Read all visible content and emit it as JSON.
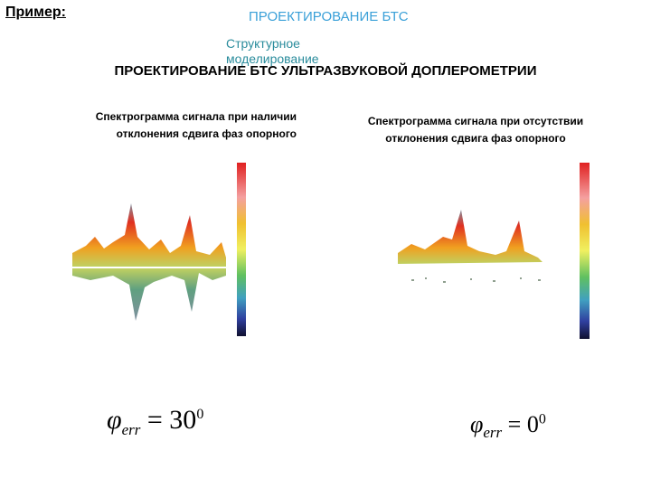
{
  "header": {
    "example_label": "Пример:",
    "section": "ПРОЕКТИРОВАНИЕ БТС",
    "subsection": "Структурное моделирование"
  },
  "title": "ПРОЕКТИРОВАНИЕ БТС УЛЬТРАЗВУКОВОЙ ДОПЛЕРОМЕТРИИ",
  "panels": [
    {
      "caption": "Спектрограмма сигнала при наличии отклонения сдвига фаз опорного",
      "formula": {
        "symbol": "φ",
        "subscript": "err",
        "relation": "= 30",
        "superscript": "0"
      }
    },
    {
      "caption": "Спектрограмма сигнала при отсутствии отклонения сдвига фаз опорного",
      "formula": {
        "symbol": "φ",
        "subscript": "err",
        "relation": "= 0",
        "superscript": "0"
      }
    }
  ]
}
